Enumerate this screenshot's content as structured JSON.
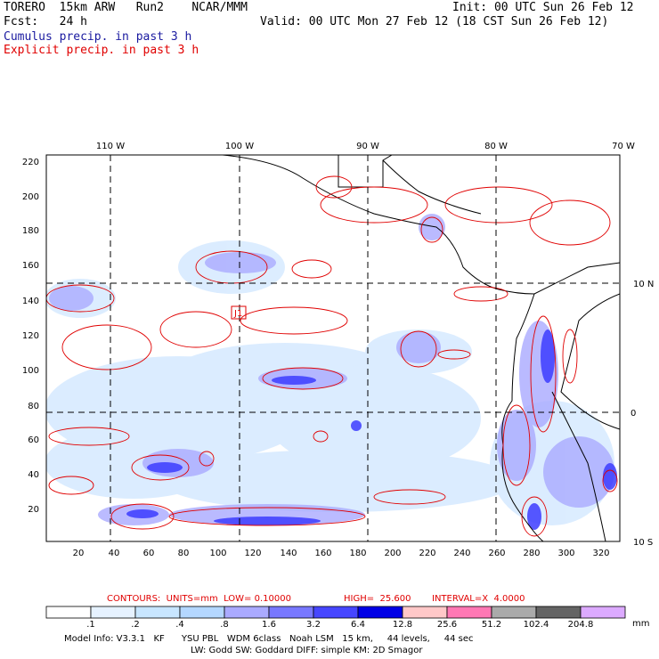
{
  "header": {
    "model": "TORERO  15km ARW   Run2    NCAR/MMM",
    "init": "Init: 00 UTC Sun 26 Feb 12",
    "fcst": "Fcst:   24 h",
    "valid": "Valid: 00 UTC Mon 27 Feb 12 (18 CST Sun 26 Feb 12)",
    "cumulus": "Cumulus precip. in past 3 h",
    "explicit": "Explicit precip. in past 3 h"
  },
  "map": {
    "top_lon_labels": [
      "110 W",
      "100 W",
      "90 W",
      "80 W",
      "70 W"
    ],
    "right_lat_labels": [
      "10 N",
      "0",
      "10 S"
    ],
    "left_y_ticks": [
      "220",
      "200",
      "180",
      "160",
      "140",
      "120",
      "100",
      "80",
      "60",
      "40",
      "20"
    ],
    "bottom_x_ticks": [
      "20",
      "40",
      "60",
      "80",
      "100",
      "120",
      "140",
      "160",
      "180",
      "200",
      "220",
      "240",
      "260",
      "280",
      "300",
      "320"
    ],
    "station_marker": "J1"
  },
  "contour_info": {
    "contours": "CONTOURS:  UNITS=mm  LOW= 0.10000",
    "high": "HIGH=  25.600",
    "interval": "INTERVAL=X  4.0000"
  },
  "colorbar": {
    "labels": [
      ".1",
      ".2",
      ".4",
      ".8",
      "1.6",
      "3.2",
      "6.4",
      "12.8",
      "25.6",
      "51.2",
      "102.4",
      "204.8"
    ],
    "unit": "mm",
    "colors": [
      "#ffffff",
      "#e6f2ff",
      "#c8e6ff",
      "#b4d7ff",
      "#aaaaff",
      "#7878ff",
      "#4646ff",
      "#0000e6",
      "#ffc8c8",
      "#ff78b4",
      "#aaaaaa",
      "#646464",
      "#dcaaff"
    ]
  },
  "footer": {
    "line1": "Model Info: V3.3.1   KF      YSU PBL   WDM 6class   Noah LSM   15 km,     44 levels,     44 sec",
    "line2": "LW: Godd SW: Goddard DIFF: simple KM: 2D Smagor"
  }
}
